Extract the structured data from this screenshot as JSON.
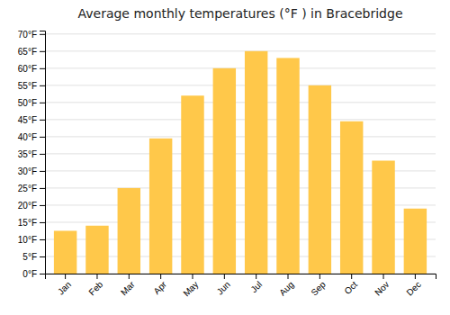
{
  "chart_data": {
    "type": "bar",
    "title": "Average monthly temperatures (°F ) in Bracebridge",
    "categories": [
      "Jan",
      "Feb",
      "Mar",
      "Apr",
      "May",
      "Jun",
      "Jul",
      "Aug",
      "Sep",
      "Oct",
      "Nov",
      "Dec"
    ],
    "values": [
      12.5,
      14,
      25,
      39.5,
      52,
      60,
      65,
      63,
      55,
      44.5,
      33,
      19
    ],
    "color": "#FFC84A",
    "ylim": [
      0,
      71
    ],
    "yticks": [
      {
        "value": 0,
        "label": "0°F"
      },
      {
        "value": 5,
        "label": "5°F"
      },
      {
        "value": 10,
        "label": "10°F"
      },
      {
        "value": 15,
        "label": "15°F"
      },
      {
        "value": 20,
        "label": "20°F"
      },
      {
        "value": 25,
        "label": "25°F"
      },
      {
        "value": 30,
        "label": "30°F"
      },
      {
        "value": 35,
        "label": "35°F"
      },
      {
        "value": 40,
        "label": "40°F"
      },
      {
        "value": 45,
        "label": "45°F"
      },
      {
        "value": 50,
        "label": "50°F"
      },
      {
        "value": 55,
        "label": "55°F"
      },
      {
        "value": 60,
        "label": "60°F"
      },
      {
        "value": 65,
        "label": "65°F"
      },
      {
        "value": 70,
        "label": "70°F"
      }
    ],
    "grid": true
  }
}
